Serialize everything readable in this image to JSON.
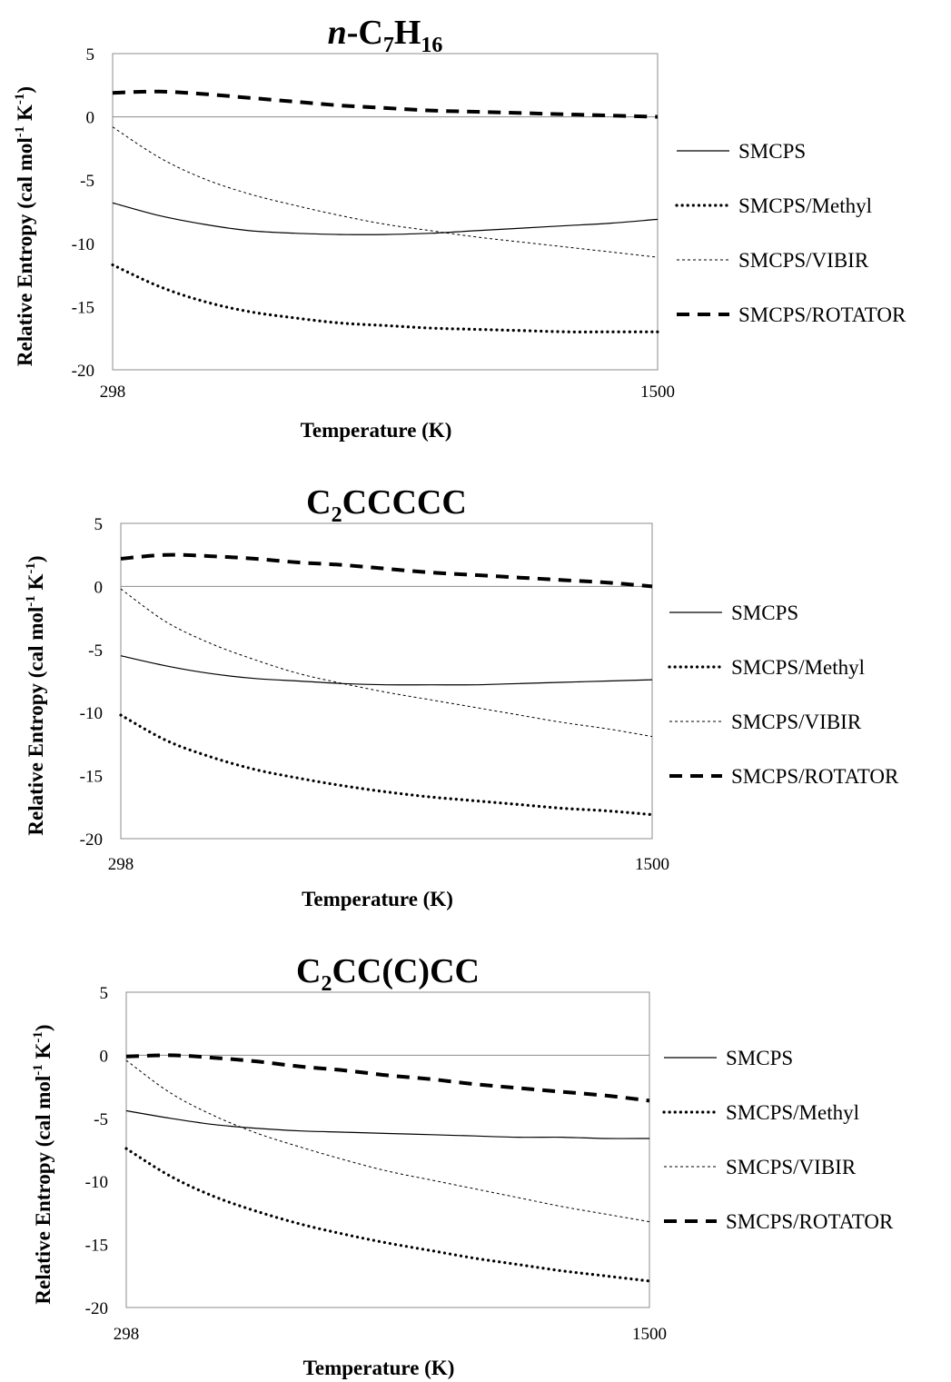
{
  "chart_data": [
    {
      "type": "line",
      "title": "n-C7H16",
      "title_parts": {
        "italic_prefix": "n",
        "sep": "-",
        "c": "C",
        "c_sub": "7",
        "h": "H",
        "h_sub": "16"
      },
      "xlabel": "Temperature (K)",
      "ylabel": "Relative Entropy (cal mol-1 K-1)",
      "ylabel_parts": {
        "pre": "Relative Entropy (cal mol",
        "sup1": "-1",
        "mid": " K",
        "sup2": "-1",
        "post": ")"
      },
      "xlim": [
        298,
        1500
      ],
      "ylim": [
        -20,
        5
      ],
      "x_ticks": [
        "298",
        "1500"
      ],
      "y_ticks": [
        "5",
        "0",
        "-5",
        "-10",
        "-15",
        "-20"
      ],
      "legend_position": "right",
      "x": [
        298,
        400,
        500,
        600,
        700,
        800,
        900,
        1000,
        1100,
        1200,
        1300,
        1400,
        1500
      ],
      "series": [
        {
          "name": "SMCPS",
          "style": "solid",
          "values": [
            -6.8,
            -7.8,
            -8.5,
            -9.0,
            -9.2,
            -9.3,
            -9.3,
            -9.2,
            -9.0,
            -8.8,
            -8.6,
            -8.4,
            -8.1
          ]
        },
        {
          "name": "SMCPS/Methyl",
          "style": "dotted",
          "values": [
            -11.7,
            -13.4,
            -14.6,
            -15.4,
            -15.9,
            -16.3,
            -16.5,
            -16.7,
            -16.8,
            -16.9,
            -17.0,
            -17.0,
            -17.0
          ]
        },
        {
          "name": "SMCPS/VIBIR",
          "style": "thin-dashed",
          "values": [
            -0.8,
            -3.2,
            -4.9,
            -6.1,
            -7.0,
            -7.8,
            -8.5,
            -9.0,
            -9.5,
            -9.9,
            -10.3,
            -10.7,
            -11.1
          ]
        },
        {
          "name": "SMCPS/ROTATOR",
          "style": "bold-dashed",
          "values": [
            1.9,
            2.0,
            1.8,
            1.5,
            1.2,
            0.9,
            0.7,
            0.5,
            0.4,
            0.3,
            0.2,
            0.1,
            0.0
          ]
        }
      ]
    },
    {
      "type": "line",
      "title": "C2CCCCC",
      "title_parts": {
        "italic_prefix": "",
        "sep": "",
        "c": "C",
        "c_sub": "2",
        "h": "CCCCC",
        "h_sub": ""
      },
      "xlabel": "Temperature (K)",
      "ylabel": "Relative Entropy (cal mol-1 K-1)",
      "ylabel_parts": {
        "pre": "Relative Entropy (cal mol",
        "sup1": "-1",
        "mid": " K",
        "sup2": "-1",
        "post": ")"
      },
      "xlim": [
        298,
        1500
      ],
      "ylim": [
        -20,
        5
      ],
      "x_ticks": [
        "298",
        "1500"
      ],
      "y_ticks": [
        "5",
        "0",
        "-5",
        "-10",
        "-15",
        "-20"
      ],
      "legend_position": "right",
      "x": [
        298,
        400,
        500,
        600,
        700,
        800,
        900,
        1000,
        1100,
        1200,
        1300,
        1400,
        1500
      ],
      "series": [
        {
          "name": "SMCPS",
          "style": "solid",
          "values": [
            -5.5,
            -6.3,
            -6.9,
            -7.3,
            -7.5,
            -7.7,
            -7.8,
            -7.8,
            -7.8,
            -7.7,
            -7.6,
            -7.5,
            -7.4
          ]
        },
        {
          "name": "SMCPS/Methyl",
          "style": "dotted",
          "values": [
            -10.2,
            -12.2,
            -13.5,
            -14.5,
            -15.2,
            -15.8,
            -16.3,
            -16.7,
            -17.0,
            -17.3,
            -17.6,
            -17.8,
            -18.1
          ]
        },
        {
          "name": "SMCPS/VIBIR",
          "style": "thin-dashed",
          "values": [
            -0.2,
            -2.8,
            -4.5,
            -5.8,
            -6.9,
            -7.7,
            -8.4,
            -9.0,
            -9.6,
            -10.2,
            -10.8,
            -11.3,
            -11.9
          ]
        },
        {
          "name": "SMCPS/ROTATOR",
          "style": "bold-dashed",
          "values": [
            2.2,
            2.5,
            2.4,
            2.2,
            1.9,
            1.7,
            1.4,
            1.1,
            0.9,
            0.7,
            0.5,
            0.3,
            0.0
          ]
        }
      ]
    },
    {
      "type": "line",
      "title": "C2CC(C)CC",
      "title_parts": {
        "italic_prefix": "",
        "sep": "",
        "c": "C",
        "c_sub": "2",
        "h": "CC(C)CC",
        "h_sub": ""
      },
      "xlabel": "Temperature (K)",
      "ylabel": "Relative Entropy (cal mol-1 K-1)",
      "ylabel_parts": {
        "pre": "Relative Entropy (cal mol",
        "sup1": "-1",
        "mid": " K",
        "sup2": "-1",
        "post": ")"
      },
      "xlim": [
        298,
        1500
      ],
      "ylim": [
        -20,
        5
      ],
      "x_ticks": [
        "298",
        "1500"
      ],
      "y_ticks": [
        "5",
        "0",
        "-5",
        "-10",
        "-15",
        "-20"
      ],
      "legend_position": "right",
      "x": [
        298,
        400,
        500,
        600,
        700,
        800,
        900,
        1000,
        1100,
        1200,
        1300,
        1400,
        1500
      ],
      "series": [
        {
          "name": "SMCPS",
          "style": "solid",
          "values": [
            -4.4,
            -5.0,
            -5.5,
            -5.8,
            -6.0,
            -6.1,
            -6.2,
            -6.3,
            -6.4,
            -6.5,
            -6.5,
            -6.6,
            -6.6
          ]
        },
        {
          "name": "SMCPS/Methyl",
          "style": "dotted",
          "values": [
            -7.4,
            -9.6,
            -11.2,
            -12.4,
            -13.4,
            -14.2,
            -14.9,
            -15.5,
            -16.1,
            -16.6,
            -17.1,
            -17.5,
            -17.9
          ]
        },
        {
          "name": "SMCPS/VIBIR",
          "style": "thin-dashed",
          "values": [
            -0.4,
            -3.0,
            -4.8,
            -6.2,
            -7.3,
            -8.3,
            -9.2,
            -9.9,
            -10.6,
            -11.3,
            -12.0,
            -12.6,
            -13.2
          ]
        },
        {
          "name": "SMCPS/ROTATOR",
          "style": "bold-dashed",
          "values": [
            -0.1,
            0.0,
            -0.2,
            -0.5,
            -0.9,
            -1.2,
            -1.6,
            -1.9,
            -2.3,
            -2.6,
            -2.9,
            -3.2,
            -3.6
          ]
        }
      ]
    }
  ]
}
